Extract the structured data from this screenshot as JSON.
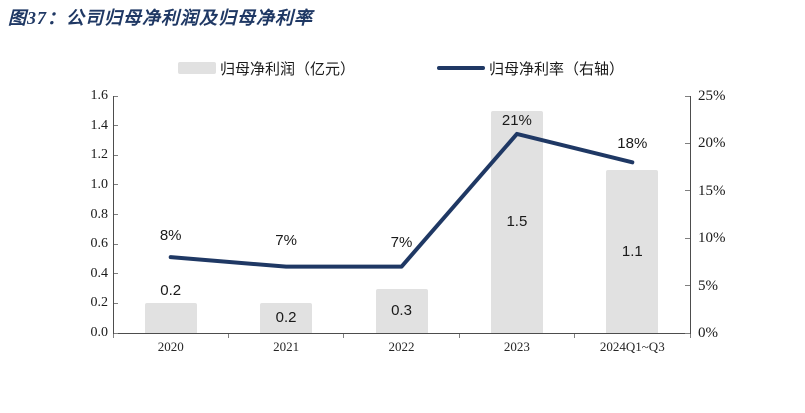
{
  "title": "图37：公司归母净利润及归母净利率",
  "colors": {
    "title_navy": "#1f3864",
    "line_navy": "#1f3864",
    "bar_fill": "#e1e1e1",
    "axis_line": "#4d4d4d",
    "tick": "#7f7f7f"
  },
  "legend": [
    {
      "type": "bar",
      "label": "归母净利润（亿元）"
    },
    {
      "type": "line",
      "label": "归母净利率（右轴）"
    }
  ],
  "chart_data": {
    "type": "bar",
    "subtype": "bar+line combo",
    "categories": [
      "2020",
      "2021",
      "2022",
      "2023",
      "2024Q1~Q3"
    ],
    "series": [
      {
        "name": "归母净利润（亿元）",
        "type": "bar",
        "axis": "left",
        "values": [
          0.2,
          0.2,
          0.3,
          1.5,
          1.1
        ],
        "labels": [
          "0.2",
          "0.2",
          "0.3",
          "1.5",
          "1.1"
        ]
      },
      {
        "name": "归母净利率（右轴）",
        "type": "line",
        "axis": "right",
        "values": [
          8,
          7,
          7,
          21,
          18
        ],
        "labels": [
          "8%",
          "7%",
          "7%",
          "21%",
          "18%"
        ]
      }
    ],
    "title": "图37：公司归母净利润及归母净利率",
    "xlabel": "",
    "ylabel": "",
    "left_axis": {
      "min": 0,
      "max": 1.6,
      "ticks": [
        "0.0",
        "0.2",
        "0.4",
        "0.6",
        "0.8",
        "1.0",
        "1.2",
        "1.4",
        "1.6"
      ]
    },
    "right_axis": {
      "min": 0,
      "max": 25,
      "ticks": [
        "0%",
        "5%",
        "10%",
        "15%",
        "20%",
        "25%"
      ]
    },
    "grid": false,
    "legend_position": "top-center"
  }
}
